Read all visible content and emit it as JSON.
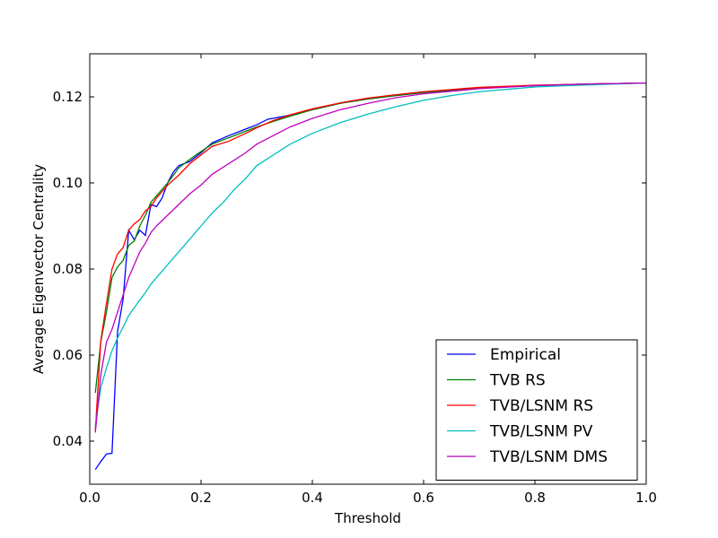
{
  "chart_data": {
    "type": "line",
    "title": "",
    "xlabel": "Threshold",
    "ylabel": "Average Eigenvector Centrality",
    "xlim": [
      0.0,
      1.0
    ],
    "ylim": [
      0.03,
      0.13
    ],
    "xticks": [
      0.0,
      0.2,
      0.4,
      0.6,
      0.8,
      1.0
    ],
    "xtick_labels": [
      "0.0",
      "0.2",
      "0.4",
      "0.6",
      "0.8",
      "1.0"
    ],
    "yticks": [
      0.04,
      0.06,
      0.08,
      0.1,
      0.12
    ],
    "ytick_labels": [
      "0.04",
      "0.06",
      "0.08",
      "0.10",
      "0.12"
    ],
    "grid": false,
    "legend_position": "bottom-right",
    "series": [
      {
        "name": "Empirical",
        "color": "#0000ff",
        "points": [
          [
            0.01,
            0.0334
          ],
          [
            0.02,
            0.0353
          ],
          [
            0.03,
            0.037
          ],
          [
            0.04,
            0.0372
          ],
          [
            0.05,
            0.0655
          ],
          [
            0.06,
            0.073
          ],
          [
            0.07,
            0.089
          ],
          [
            0.08,
            0.0868
          ],
          [
            0.09,
            0.089
          ],
          [
            0.1,
            0.0878
          ],
          [
            0.11,
            0.095
          ],
          [
            0.12,
            0.0945
          ],
          [
            0.13,
            0.0965
          ],
          [
            0.14,
            0.1
          ],
          [
            0.15,
            0.1025
          ],
          [
            0.16,
            0.104
          ],
          [
            0.18,
            0.105
          ],
          [
            0.2,
            0.107
          ],
          [
            0.22,
            0.1093
          ],
          [
            0.25,
            0.111
          ],
          [
            0.28,
            0.1125
          ],
          [
            0.3,
            0.1135
          ],
          [
            0.32,
            0.1148
          ],
          [
            0.35,
            0.1155
          ],
          [
            0.4,
            0.117
          ],
          [
            0.45,
            0.1185
          ],
          [
            0.5,
            0.1195
          ],
          [
            0.55,
            0.1203
          ],
          [
            0.6,
            0.121
          ],
          [
            0.7,
            0.122
          ],
          [
            0.8,
            0.1226
          ],
          [
            0.9,
            0.123
          ],
          [
            1.0,
            0.1232
          ]
        ]
      },
      {
        "name": "TVB RS",
        "color": "#008000",
        "points": [
          [
            0.01,
            0.0512
          ],
          [
            0.02,
            0.0632
          ],
          [
            0.03,
            0.07
          ],
          [
            0.04,
            0.078
          ],
          [
            0.05,
            0.0805
          ],
          [
            0.06,
            0.082
          ],
          [
            0.07,
            0.0855
          ],
          [
            0.08,
            0.0865
          ],
          [
            0.09,
            0.09
          ],
          [
            0.1,
            0.0925
          ],
          [
            0.11,
            0.0955
          ],
          [
            0.12,
            0.097
          ],
          [
            0.14,
            0.1
          ],
          [
            0.16,
            0.1035
          ],
          [
            0.18,
            0.1055
          ],
          [
            0.2,
            0.1073
          ],
          [
            0.22,
            0.109
          ],
          [
            0.25,
            0.1105
          ],
          [
            0.28,
            0.112
          ],
          [
            0.3,
            0.113
          ],
          [
            0.33,
            0.1143
          ],
          [
            0.36,
            0.1155
          ],
          [
            0.4,
            0.117
          ],
          [
            0.45,
            0.1185
          ],
          [
            0.5,
            0.1195
          ],
          [
            0.55,
            0.1203
          ],
          [
            0.6,
            0.121
          ],
          [
            0.7,
            0.122
          ],
          [
            0.8,
            0.1226
          ],
          [
            0.9,
            0.123
          ],
          [
            1.0,
            0.1232
          ]
        ]
      },
      {
        "name": "TVB/LSNM RS",
        "color": "#ff0000",
        "points": [
          [
            0.01,
            0.0425
          ],
          [
            0.02,
            0.0635
          ],
          [
            0.03,
            0.072
          ],
          [
            0.04,
            0.08
          ],
          [
            0.05,
            0.0835
          ],
          [
            0.06,
            0.085
          ],
          [
            0.07,
            0.089
          ],
          [
            0.08,
            0.0905
          ],
          [
            0.09,
            0.0915
          ],
          [
            0.1,
            0.0935
          ],
          [
            0.11,
            0.0945
          ],
          [
            0.12,
            0.0965
          ],
          [
            0.14,
            0.0995
          ],
          [
            0.16,
            0.1018
          ],
          [
            0.18,
            0.1045
          ],
          [
            0.2,
            0.1065
          ],
          [
            0.22,
            0.1085
          ],
          [
            0.25,
            0.1097
          ],
          [
            0.28,
            0.1115
          ],
          [
            0.3,
            0.1128
          ],
          [
            0.33,
            0.1145
          ],
          [
            0.36,
            0.1158
          ],
          [
            0.4,
            0.1172
          ],
          [
            0.45,
            0.1186
          ],
          [
            0.5,
            0.1197
          ],
          [
            0.55,
            0.1205
          ],
          [
            0.6,
            0.1212
          ],
          [
            0.7,
            0.1222
          ],
          [
            0.8,
            0.1227
          ],
          [
            0.9,
            0.123
          ],
          [
            1.0,
            0.1232
          ]
        ]
      },
      {
        "name": "TVB/LSNM PV",
        "color": "#00bfbf",
        "points": [
          [
            0.01,
            0.0438
          ],
          [
            0.02,
            0.0525
          ],
          [
            0.03,
            0.057
          ],
          [
            0.04,
            0.061
          ],
          [
            0.05,
            0.064
          ],
          [
            0.06,
            0.0665
          ],
          [
            0.07,
            0.0692
          ],
          [
            0.08,
            0.071
          ],
          [
            0.09,
            0.0728
          ],
          [
            0.1,
            0.0745
          ],
          [
            0.11,
            0.0765
          ],
          [
            0.12,
            0.078
          ],
          [
            0.14,
            0.081
          ],
          [
            0.16,
            0.084
          ],
          [
            0.18,
            0.087
          ],
          [
            0.2,
            0.09
          ],
          [
            0.22,
            0.093
          ],
          [
            0.24,
            0.0955
          ],
          [
            0.26,
            0.0985
          ],
          [
            0.28,
            0.101
          ],
          [
            0.3,
            0.104
          ],
          [
            0.33,
            0.1065
          ],
          [
            0.36,
            0.109
          ],
          [
            0.4,
            0.1115
          ],
          [
            0.45,
            0.114
          ],
          [
            0.5,
            0.116
          ],
          [
            0.55,
            0.1177
          ],
          [
            0.6,
            0.1192
          ],
          [
            0.65,
            0.1203
          ],
          [
            0.7,
            0.1212
          ],
          [
            0.8,
            0.1223
          ],
          [
            0.9,
            0.1228
          ],
          [
            1.0,
            0.1232
          ]
        ]
      },
      {
        "name": "TVB/LSNM DMS",
        "color": "#bf00bf",
        "points": [
          [
            0.01,
            0.042
          ],
          [
            0.02,
            0.0555
          ],
          [
            0.03,
            0.063
          ],
          [
            0.04,
            0.066
          ],
          [
            0.05,
            0.07
          ],
          [
            0.06,
            0.074
          ],
          [
            0.07,
            0.078
          ],
          [
            0.08,
            0.081
          ],
          [
            0.09,
            0.084
          ],
          [
            0.1,
            0.086
          ],
          [
            0.11,
            0.0885
          ],
          [
            0.12,
            0.09
          ],
          [
            0.14,
            0.0925
          ],
          [
            0.16,
            0.095
          ],
          [
            0.18,
            0.0975
          ],
          [
            0.2,
            0.0995
          ],
          [
            0.22,
            0.102
          ],
          [
            0.25,
            0.1045
          ],
          [
            0.28,
            0.107
          ],
          [
            0.3,
            0.109
          ],
          [
            0.33,
            0.111
          ],
          [
            0.36,
            0.113
          ],
          [
            0.4,
            0.115
          ],
          [
            0.45,
            0.117
          ],
          [
            0.5,
            0.1185
          ],
          [
            0.55,
            0.1198
          ],
          [
            0.6,
            0.1207
          ],
          [
            0.7,
            0.1219
          ],
          [
            0.8,
            0.1226
          ],
          [
            0.9,
            0.123
          ],
          [
            1.0,
            0.1232
          ]
        ]
      }
    ]
  }
}
